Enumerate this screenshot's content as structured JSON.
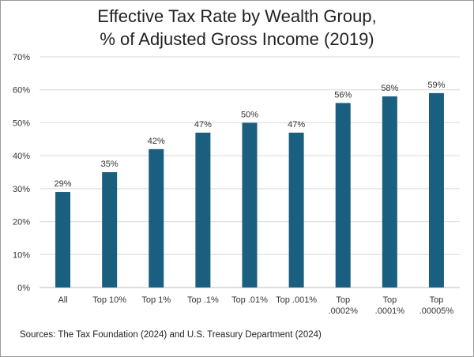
{
  "chart_data": {
    "type": "bar",
    "title_lines": [
      "Effective Tax Rate by Wealth Group,",
      "% of Adjusted Gross Income (2019)"
    ],
    "categories": [
      [
        "All"
      ],
      [
        "Top 10%"
      ],
      [
        "Top 1%"
      ],
      [
        "Top .1%"
      ],
      [
        "Top .01%"
      ],
      [
        "Top .001%"
      ],
      [
        "Top",
        ".0002%"
      ],
      [
        "Top",
        ".0001%"
      ],
      [
        "Top",
        ".00005%"
      ]
    ],
    "values": [
      29,
      35,
      42,
      47,
      50,
      47,
      56,
      58,
      59
    ],
    "data_labels": [
      "29%",
      "35%",
      "42%",
      "47%",
      "50%",
      "47%",
      "56%",
      "58%",
      "59%"
    ],
    "y_ticks": [
      0,
      10,
      20,
      30,
      40,
      50,
      60,
      70
    ],
    "y_tick_labels": [
      "0%",
      "10%",
      "20%",
      "30%",
      "40%",
      "50%",
      "60%",
      "70%"
    ],
    "ylim": [
      0,
      70
    ],
    "grid": true,
    "xlabel": "",
    "ylabel": "",
    "bar_color": "#1a5f7f",
    "source": "Sources: The Tax Foundation (2024)  and U.S. Treasury Department (2024)"
  }
}
